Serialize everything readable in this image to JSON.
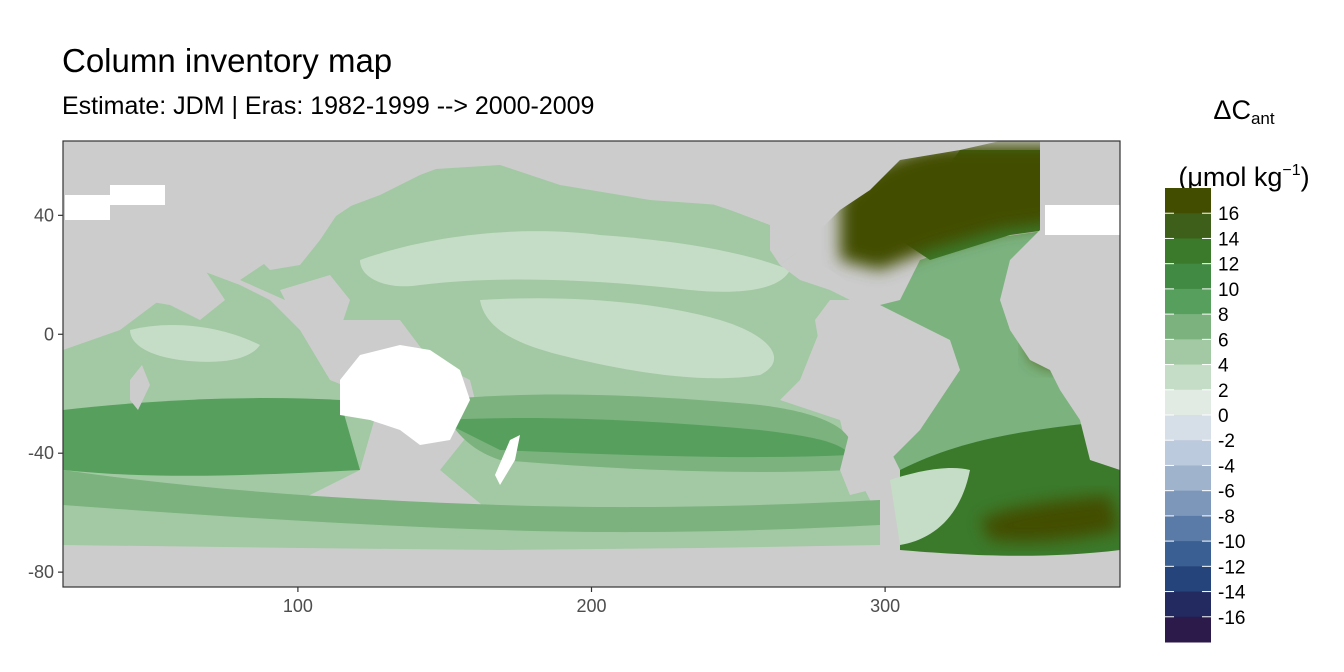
{
  "chart_data": {
    "type": "heatmap",
    "title": "Column inventory map",
    "subtitle": "Estimate: JDM  | Eras: 1982-1999 --> 2000-2009",
    "legend_title": {
      "symbol": "ΔC",
      "subscript": "ant",
      "unit_main": "(μmol kg",
      "unit_sup": "−1",
      "unit_close": ")"
    },
    "xlim": [
      20,
      380
    ],
    "ylim": [
      -85,
      65
    ],
    "x_ticks": [
      100,
      200,
      300
    ],
    "y_ticks": [
      40,
      0,
      -40,
      -80
    ],
    "legend_labels": [
      "16",
      "14",
      "12",
      "10",
      "8",
      "6",
      "4",
      "2",
      "0",
      "-2",
      "-4",
      "-6",
      "-8",
      "-10",
      "-12",
      "-14",
      "-16"
    ],
    "legend_colors": [
      "#434d00",
      "#3d5f19",
      "#3b7a2b",
      "#418a44",
      "#579f5d",
      "#7bb27e",
      "#a2c9a3",
      "#c5ddc6",
      "#e2eae4",
      "#d6dee8",
      "#bccadd",
      "#9fb3cc",
      "#7d97ba",
      "#5a7ba8",
      "#3a5f92",
      "#25447b",
      "#232a60",
      "#2b1a4a"
    ],
    "colors": {
      "land": "#cccccc",
      "ice": "#ffffff",
      "panel_border": "#333333"
    }
  }
}
